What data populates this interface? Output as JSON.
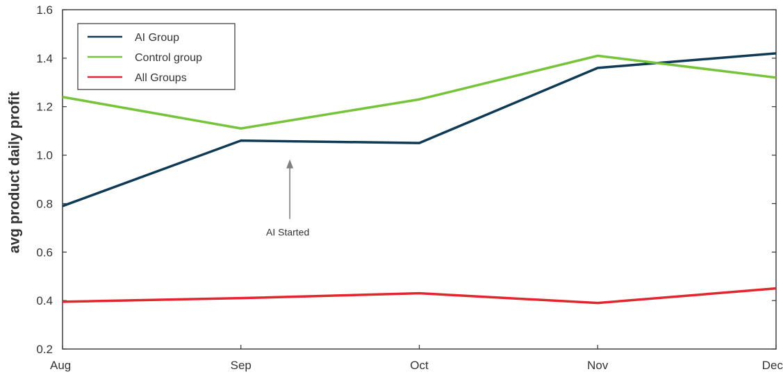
{
  "chart_data": {
    "type": "line",
    "title": "",
    "xlabel": "",
    "ylabel": "avg product daily profit",
    "categories": [
      "Aug",
      "Sep",
      "Oct",
      "Nov",
      "Dec"
    ],
    "ylim": [
      0.2,
      1.6
    ],
    "yticks": [
      "0.2",
      "0.4",
      "0.6",
      "0.8",
      "1.0",
      "1.2",
      "1.4",
      "1.6"
    ],
    "grid": false,
    "legend_position": "top-left",
    "series": [
      {
        "name": "AI Group",
        "color": "#0f3a55",
        "values": [
          0.79,
          1.06,
          1.05,
          1.36,
          1.42
        ]
      },
      {
        "name": "Control group",
        "color": "#76c43a",
        "values": [
          1.24,
          1.11,
          1.23,
          1.41,
          1.32
        ]
      },
      {
        "name": "All Groups",
        "color": "#e3262e",
        "values": [
          0.395,
          0.41,
          0.43,
          0.39,
          0.45
        ]
      }
    ],
    "annotations": [
      {
        "text": "AI Started",
        "x": "Sep–Oct",
        "arrow_tip_value": 1.0
      }
    ]
  }
}
